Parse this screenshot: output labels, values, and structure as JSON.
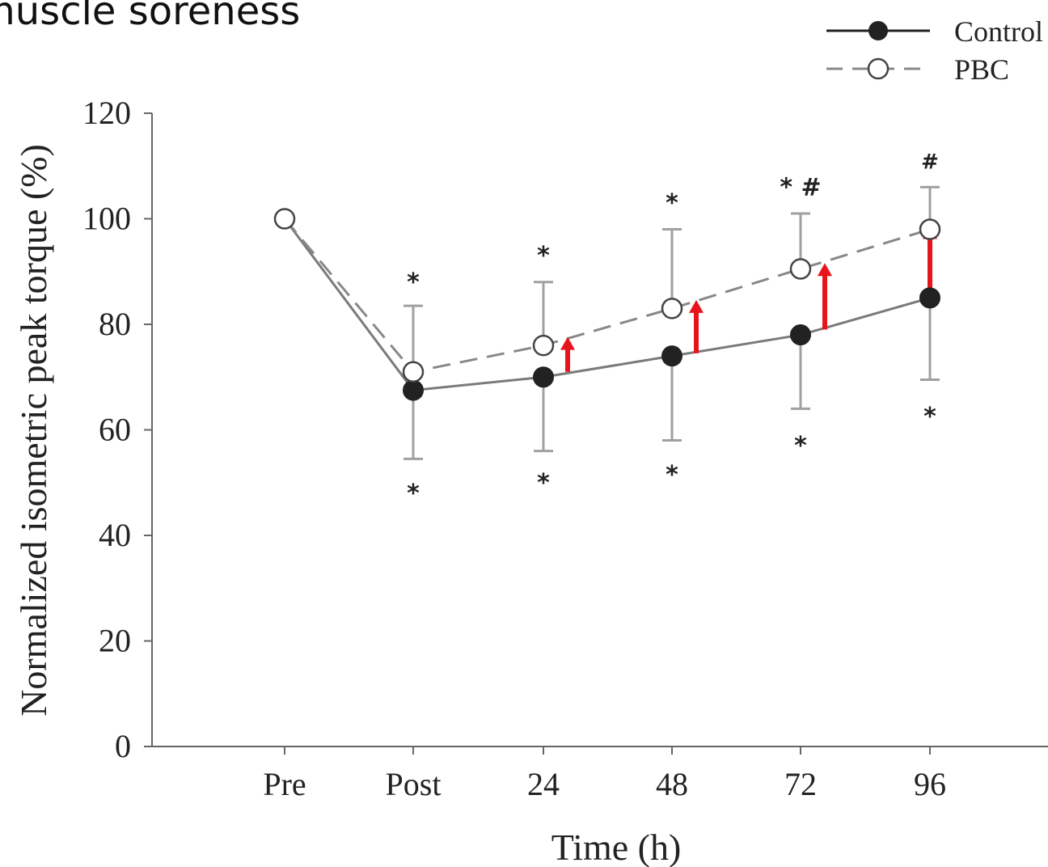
{
  "title": "muscle soreness",
  "colors": {
    "control": "#222222",
    "pbc": "#888888",
    "error_bar": "#a0a0a0",
    "arrow": "#e8141c",
    "axis": "#666666"
  },
  "chart_data": {
    "type": "line",
    "categories": [
      "Pre",
      "Post",
      "24",
      "48",
      "72",
      "96"
    ],
    "xlabel": "Time (h)",
    "ylabel": "Normalized isometric peak torque (%)",
    "ylim": [
      0,
      120
    ],
    "yticks": [
      0,
      20,
      40,
      60,
      80,
      100,
      120
    ],
    "grid": false,
    "legend_position": "top-right",
    "series": [
      {
        "name": "Control",
        "marker": "filled-circle",
        "line": "solid",
        "values": [
          100,
          67.5,
          70,
          74,
          78,
          85
        ],
        "error_low": [
          null,
          54.5,
          56,
          58,
          64,
          69.5
        ],
        "error_high": [
          null,
          null,
          null,
          null,
          null,
          null
        ]
      },
      {
        "name": "PBC",
        "marker": "open-circle",
        "line": "dashed",
        "values": [
          100,
          71,
          76,
          83,
          90.5,
          98
        ],
        "error_low": [
          null,
          null,
          null,
          null,
          null,
          null
        ],
        "error_high": [
          null,
          83.5,
          88,
          98,
          101,
          106
        ]
      }
    ],
    "significance": [
      {
        "category": "Post",
        "y": 88,
        "symbol": "*"
      },
      {
        "category": "Post",
        "y": 48,
        "symbol": "*"
      },
      {
        "category": "24",
        "y": 93,
        "symbol": "*"
      },
      {
        "category": "24",
        "y": 50,
        "symbol": "*"
      },
      {
        "category": "48",
        "y": 103,
        "symbol": "*"
      },
      {
        "category": "48",
        "y": 51.5,
        "symbol": "*"
      },
      {
        "category": "72",
        "y": 106,
        "symbol": "* #"
      },
      {
        "category": "72",
        "y": 57,
        "symbol": "*"
      },
      {
        "category": "96",
        "y": 111,
        "symbol": "#"
      },
      {
        "category": "96",
        "y": 62.5,
        "symbol": "*"
      }
    ],
    "improvement_arrows": [
      {
        "after_category": "24",
        "from": 71,
        "to": 77
      },
      {
        "after_category": "48",
        "from": 74.5,
        "to": 84
      },
      {
        "after_category": "72",
        "from": 79,
        "to": 91
      },
      {
        "after_category": "96",
        "from": 85,
        "to": 98
      }
    ]
  }
}
